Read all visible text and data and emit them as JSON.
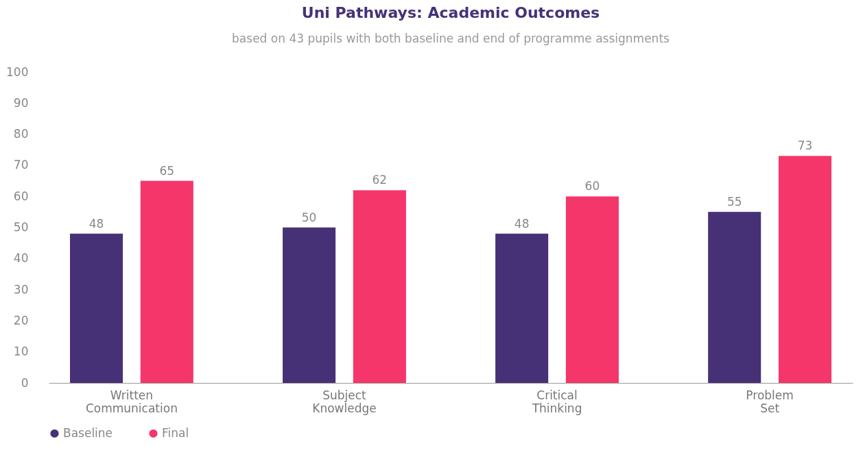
{
  "chart_data": {
    "type": "bar",
    "title": "Uni Pathways: Academic Outcomes",
    "subtitle": "based on 43 pupils with both baseline and end of programme assignments",
    "categories": [
      "Written Communication",
      "Subject Knowledge",
      "Critical Thinking",
      "Problem Set"
    ],
    "series": [
      {
        "name": "Baseline",
        "color": "#463177",
        "values": [
          48,
          50,
          48,
          55
        ]
      },
      {
        "name": "Final",
        "color": "#f5366a",
        "values": [
          65,
          62,
          60,
          73
        ]
      }
    ],
    "ylim": [
      0,
      100
    ],
    "yticks": [
      0,
      10,
      20,
      30,
      40,
      50,
      60,
      70,
      80,
      90,
      100
    ],
    "grid": false,
    "legend": "bottom",
    "data_labels": true
  }
}
